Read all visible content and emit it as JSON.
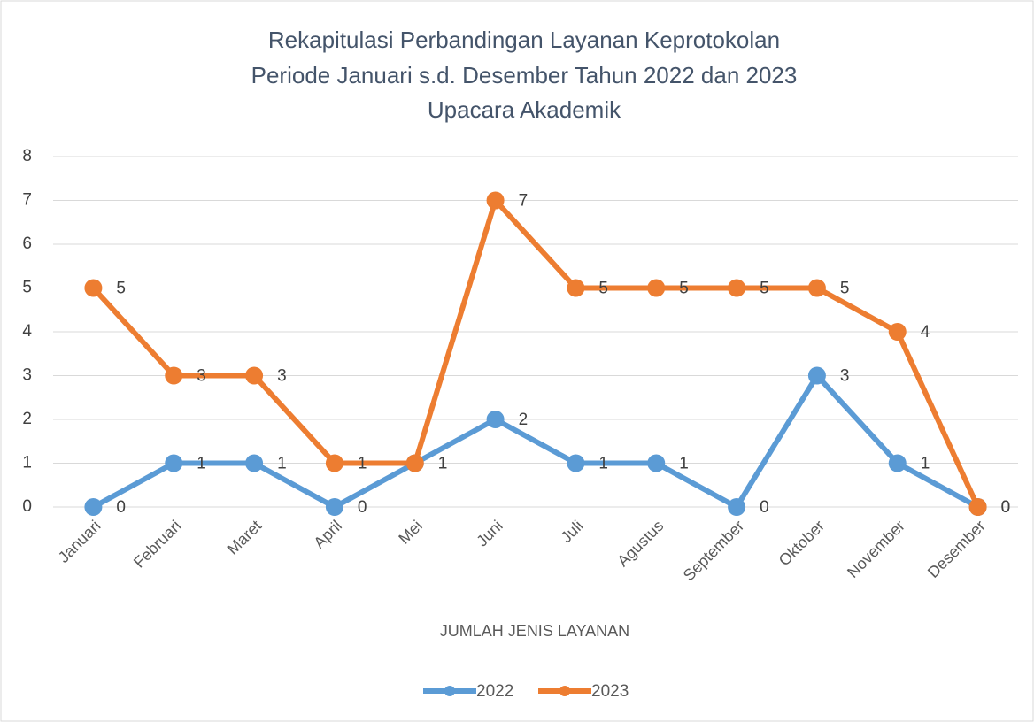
{
  "chart_data": {
    "type": "line",
    "title": [
      "Rekapitulasi Perbandingan Layanan Keprotokolan",
      "Periode Januari s.d. Desember Tahun 2022 dan 2023",
      "Upacara Akademik"
    ],
    "x_label": "JUMLAH JENIS LAYANAN",
    "categories": [
      "Januari",
      "Februari",
      "Maret",
      "April",
      "Mei",
      "Juni",
      "Juli",
      "Agustus",
      "September",
      "Oktober",
      "November",
      "Desember"
    ],
    "series": [
      {
        "name": "2022",
        "color": "#5b9bd5",
        "values": [
          0,
          1,
          1,
          0,
          1,
          2,
          1,
          1,
          0,
          3,
          1,
          0
        ]
      },
      {
        "name": "2023",
        "color": "#ed7d31",
        "values": [
          5,
          3,
          3,
          1,
          1,
          7,
          5,
          5,
          5,
          5,
          4,
          0
        ]
      }
    ],
    "ylim": [
      0,
      8
    ],
    "yticks": [
      0,
      1,
      2,
      3,
      4,
      5,
      6,
      7,
      8
    ],
    "grid": true,
    "legend": "bottom",
    "data_labels": true
  }
}
